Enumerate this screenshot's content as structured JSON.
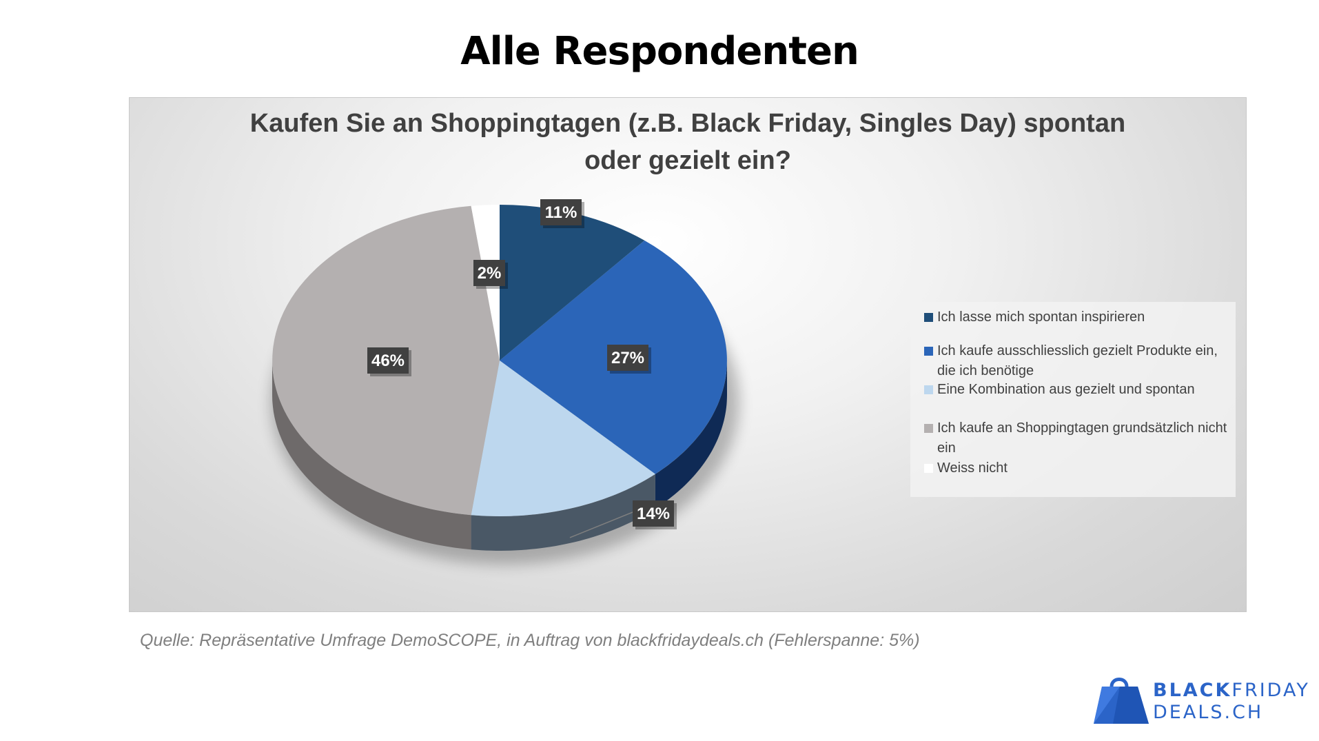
{
  "heading": "Alle Respondenten",
  "source": "Quelle: Repräsentative Umfrage DemoSCOPE, in Auftrag von blackfridaydeals.ch (Fehlerspanne: 5%)",
  "logo": {
    "word1": "BLACK",
    "word2": "FRIDAY",
    "line2": "DEALS.CH",
    "color": "#2b64c8"
  },
  "chart_data": {
    "type": "pie",
    "title_lines": [
      "Kaufen Sie an Shoppingtagen (z.B. Black Friday, Singles Day) spontan",
      "oder gezielt ein?"
    ],
    "legend_position": "right",
    "slices": [
      {
        "name": "Ich lasse mich spontan inspirieren",
        "value": 11,
        "label": "11%",
        "color": "#1f4e79",
        "side": "#132f4a"
      },
      {
        "name": "Ich kaufe ausschliesslich gezielt Produkte ein, die ich benötige",
        "value": 27,
        "label": "27%",
        "color": "#2b65b8",
        "side": "#0f2a55"
      },
      {
        "name": "Eine Kombination aus gezielt und spontan",
        "value": 14,
        "label": "14%",
        "color": "#bdd7ee",
        "side": "#4a5866"
      },
      {
        "name": "Ich kaufe an Shoppingtagen grundsätzlich nicht ein",
        "value": 46,
        "label": "46%",
        "color": "#b4b0b0",
        "side": "#6e6a6a"
      },
      {
        "name": "Weiss nicht",
        "value": 2,
        "label": "2%",
        "color": "#ffffff",
        "side": "#d0d0d0"
      }
    ]
  }
}
